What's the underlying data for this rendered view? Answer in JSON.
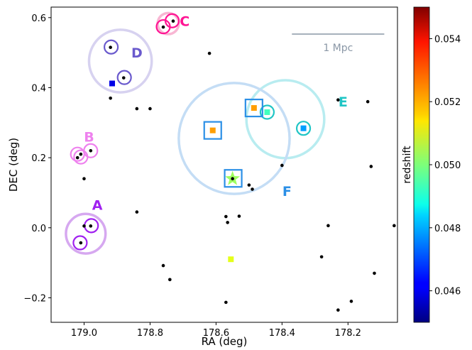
{
  "chart_data": {
    "type": "scatter",
    "xlabel": "RA (deg)",
    "ylabel": "DEC (deg)",
    "xlim": [
      179.1,
      178.05
    ],
    "ylim": [
      -0.27,
      0.63
    ],
    "x_inverted": true,
    "xticks": [
      179.0,
      178.8,
      178.6,
      178.4,
      178.2
    ],
    "xtick_labels": [
      "179.0",
      "178.8",
      "178.6",
      "178.4",
      "178.2"
    ],
    "yticks": [
      -0.2,
      0.0,
      0.2,
      0.4,
      0.6
    ],
    "ytick_labels": [
      "−0.2",
      "0.0",
      "0.2",
      "0.4",
      "0.6"
    ],
    "grid": false,
    "scale_bar": {
      "label": "1 Mpc",
      "x_start": 178.37,
      "x_end": 178.09,
      "y": 0.553,
      "color": "#8a97a6"
    },
    "colorbar": {
      "label": "redshift",
      "min": 0.045,
      "max": 0.055,
      "colormap": "jet",
      "ticks": [
        0.046,
        0.048,
        0.05,
        0.052,
        0.054
      ],
      "tick_labels": [
        "0.046",
        "0.048",
        "0.050",
        "0.052",
        "0.054"
      ]
    },
    "background_galaxies": [
      [
        178.62,
        0.498
      ],
      [
        178.92,
        0.37
      ],
      [
        178.84,
        0.34
      ],
      [
        178.8,
        0.34
      ],
      [
        178.23,
        0.365
      ],
      [
        178.14,
        0.36
      ],
      [
        179.02,
        0.2
      ],
      [
        179.0,
        0.14
      ],
      [
        178.13,
        0.175
      ],
      [
        178.4,
        0.178
      ],
      [
        178.5,
        0.122
      ],
      [
        178.49,
        0.11
      ],
      [
        178.84,
        0.045
      ],
      [
        178.57,
        0.032
      ],
      [
        178.53,
        0.033
      ],
      [
        178.565,
        0.015
      ],
      [
        179.0,
        0.005
      ],
      [
        178.26,
        0.006
      ],
      [
        178.06,
        0.006
      ],
      [
        178.28,
        -0.083
      ],
      [
        178.76,
        -0.108
      ],
      [
        178.74,
        -0.148
      ],
      [
        178.12,
        -0.13
      ],
      [
        178.57,
        -0.213
      ],
      [
        178.19,
        -0.21
      ],
      [
        178.23,
        -0.235
      ],
      [
        178.76,
        0.573
      ],
      [
        178.73,
        0.59
      ],
      [
        178.92,
        0.515
      ],
      [
        178.88,
        0.428
      ],
      [
        178.98,
        0.22
      ],
      [
        179.01,
        0.21
      ],
      [
        178.98,
        0.005
      ],
      [
        179.01,
        -0.043
      ],
      [
        178.55,
        0.14
      ]
    ],
    "members": [
      {
        "ra": 178.915,
        "dec": 0.412,
        "z": 0.046,
        "marker": "square"
      },
      {
        "ra": 178.61,
        "dec": 0.278,
        "z": 0.0522,
        "marker": "square"
      },
      {
        "ra": 178.485,
        "dec": 0.342,
        "z": 0.0522,
        "marker": "square"
      },
      {
        "ra": 178.445,
        "dec": 0.33,
        "z": 0.0494,
        "marker": "square"
      },
      {
        "ra": 178.335,
        "dec": 0.284,
        "z": 0.0478,
        "marker": "square"
      },
      {
        "ra": 178.555,
        "dec": -0.09,
        "z": 0.051,
        "marker": "square"
      },
      {
        "ra": 178.55,
        "dec": 0.14,
        "z": 0.0503,
        "marker": "star"
      }
    ],
    "groups": [
      {
        "label": "A",
        "color": "#a020f0",
        "big": {
          "ra": 178.995,
          "dec": -0.017,
          "r": 0.06,
          "color": "#d6a8f0"
        },
        "small": [
          [
            178.978,
            0.006
          ],
          [
            179.012,
            -0.043
          ]
        ],
        "label_pos": [
          178.96,
          0.065
        ]
      },
      {
        "label": "B",
        "color": "#ee82ee",
        "big": null,
        "small": [
          [
            178.98,
            0.22
          ],
          [
            179.01,
            0.202
          ],
          [
            179.02,
            0.21
          ]
        ],
        "label_pos": [
          178.985,
          0.26
        ]
      },
      {
        "label": "C",
        "color": "#ff1493",
        "big": {
          "ra": 178.745,
          "dec": 0.583,
          "r": 0.032,
          "color": "#f8b6d3"
        },
        "small": [
          [
            178.733,
            0.591
          ],
          [
            178.76,
            0.574
          ]
        ],
        "label_pos": [
          178.695,
          0.59
        ]
      },
      {
        "label": "D",
        "color": "#6a5acd",
        "big": {
          "ra": 178.89,
          "dec": 0.476,
          "r": 0.095,
          "color": "#d7d2f0"
        },
        "small": [
          [
            178.918,
            0.516
          ],
          [
            178.878,
            0.429
          ]
        ],
        "label_pos": [
          178.84,
          0.5
        ]
      },
      {
        "label": "E",
        "color": "#20c5c5",
        "big": {
          "ra": 178.39,
          "dec": 0.31,
          "r": 0.118,
          "color": "#b8ecf0"
        },
        "small": [
          [
            178.445,
            0.33
          ],
          [
            178.335,
            0.284
          ]
        ],
        "label_pos": [
          178.215,
          0.36
        ]
      },
      {
        "label": "F",
        "color": "#2b8fe6",
        "big": {
          "ra": 178.545,
          "dec": 0.255,
          "r": 0.168,
          "color": "#c4ddf5"
        },
        "squares": [
          [
            178.61,
            0.278
          ],
          [
            178.485,
            0.342
          ],
          [
            178.548,
            0.141
          ]
        ],
        "small": [],
        "label_pos": [
          178.385,
          0.105
        ]
      }
    ]
  }
}
